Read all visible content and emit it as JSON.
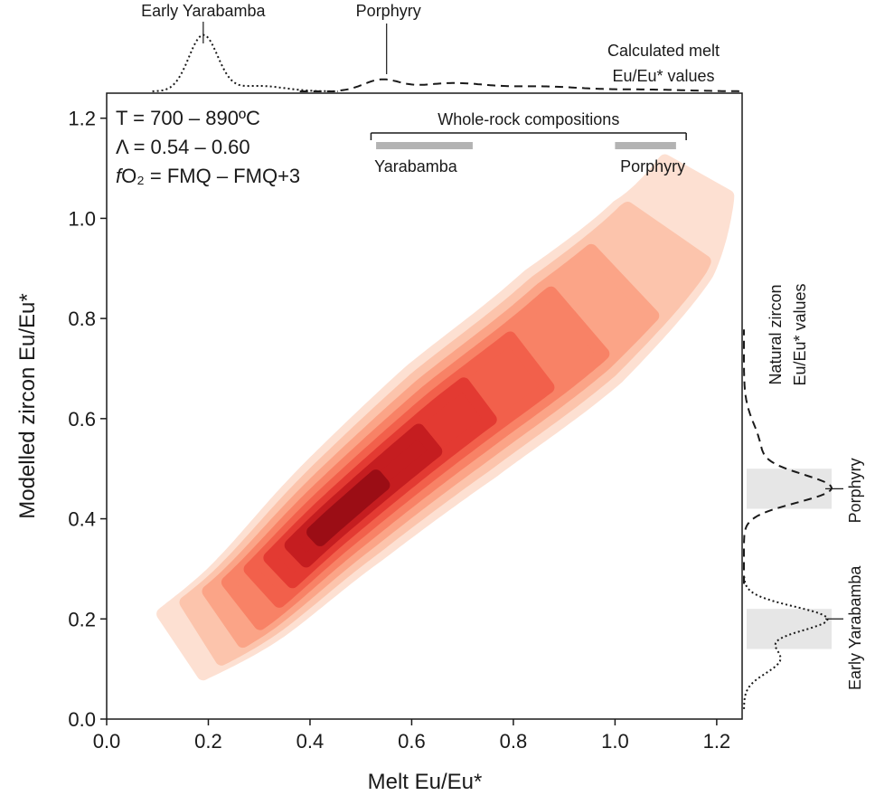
{
  "chart_data": {
    "type": "density-contour",
    "xlabel": "Melt Eu/Eu*",
    "ylabel": "Modelled zircon Eu/Eu*",
    "xlim": [
      0.0,
      1.25
    ],
    "ylim": [
      0.0,
      1.25
    ],
    "x_ticks": [
      "0.0",
      "0.2",
      "0.4",
      "0.6",
      "0.8",
      "1.0",
      "1.2"
    ],
    "y_ticks": [
      "0.0",
      "0.2",
      "0.4",
      "0.6",
      "0.8",
      "1.0",
      "1.2"
    ],
    "grid": false,
    "conditions": {
      "temperature": "T = 700 – 890ºC",
      "lambda": "Λ = 0.54 – 0.60",
      "fo2_prefix": "f",
      "fo2_rest": "O₂ = FMQ – FMQ+3"
    },
    "density_levels": [
      "#fde0d2",
      "#fcc4ac",
      "#fba487",
      "#f88266",
      "#f2604b",
      "#e33a32",
      "#c51d20",
      "#9b0d15"
    ],
    "density_ridge": [
      {
        "x": 0.15,
        "y": 0.15
      },
      {
        "x": 0.28,
        "y": 0.24
      },
      {
        "x": 0.45,
        "y": 0.4
      },
      {
        "x": 0.66,
        "y": 0.58
      },
      {
        "x": 0.89,
        "y": 0.76
      },
      {
        "x": 1.08,
        "y": 0.94
      },
      {
        "x": 1.16,
        "y": 1.08
      }
    ],
    "whole_rock": {
      "title": "Whole-rock compositions",
      "range": [
        0.52,
        1.14
      ],
      "groups": [
        {
          "name": "Yarabamba",
          "range": [
            0.53,
            0.72
          ]
        },
        {
          "name": "Porphyry",
          "range": [
            1.0,
            1.12
          ]
        }
      ],
      "bar_color": "#b3b3b3"
    },
    "top_marginal": {
      "title_line1": "Calculated melt",
      "title_line2": "Eu/Eu* values",
      "series": [
        {
          "name": "Early Yarabamba",
          "style": "dotted",
          "peak_x": 0.19
        },
        {
          "name": "Porphyry",
          "style": "dashed",
          "peak_x": 0.54
        }
      ]
    },
    "right_marginal": {
      "title_line1": "Natural zircon",
      "title_line2": "Eu/Eu* values",
      "series": [
        {
          "name": "Porphyry",
          "style": "dashed",
          "peak_y": 0.46,
          "band": [
            0.42,
            0.5
          ]
        },
        {
          "name": "Early Yarabamba",
          "style": "dotted",
          "peak_y": 0.2,
          "band": [
            0.14,
            0.22
          ]
        }
      ],
      "band_color": "#e6e6e6"
    }
  }
}
